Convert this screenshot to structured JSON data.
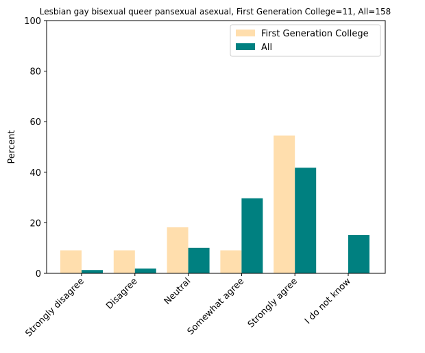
{
  "chart_data": {
    "type": "bar",
    "title": "Lesbian gay bisexual queer pansexual asexual, First Generation College=11, All=158",
    "xlabel": "",
    "ylabel": "Percent",
    "ylim": [
      0,
      100
    ],
    "yticks": [
      "0",
      "20",
      "40",
      "60",
      "80",
      "100"
    ],
    "categories": [
      "Strongly disagree",
      "Disagree",
      "Neutral",
      "Somewhat agree",
      "Strongly agree",
      "I do not know"
    ],
    "series": [
      {
        "name": "First Generation College",
        "color": "#ffdead",
        "values": [
          9.1,
          9.1,
          18.2,
          9.1,
          54.5,
          0
        ]
      },
      {
        "name": "All",
        "color": "#008080",
        "values": [
          1.3,
          1.9,
          10.1,
          29.7,
          41.8,
          15.2
        ]
      }
    ],
    "legend_position": "top-right",
    "grid": false
  }
}
